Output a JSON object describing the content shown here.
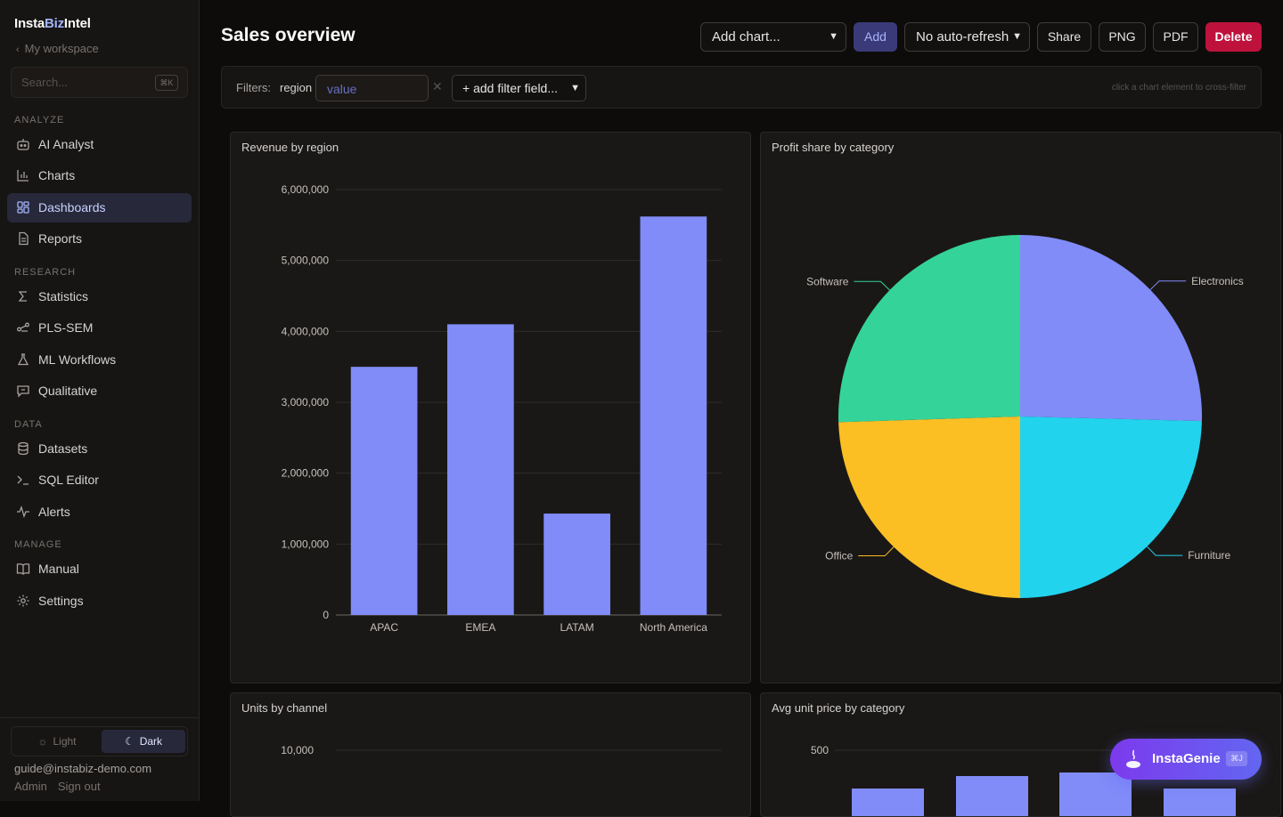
{
  "app": {
    "brand_prefix": "Insta",
    "brand_accent": "Biz",
    "brand_suffix": "Intel",
    "workspace_label": "My workspace",
    "search_placeholder": "Search...",
    "search_shortcut": "⌘K"
  },
  "sidebar": {
    "sections": {
      "analyze": "ANALYZE",
      "research": "RESEARCH",
      "data": "DATA",
      "manage": "MANAGE"
    },
    "items": [
      {
        "label": "AI Analyst",
        "icon": "robot-icon"
      },
      {
        "label": "Charts",
        "icon": "bar-chart-icon"
      },
      {
        "label": "Dashboards",
        "icon": "dashboard-grid-icon",
        "active": true
      },
      {
        "label": "Reports",
        "icon": "document-icon"
      },
      {
        "label": "Statistics",
        "icon": "sigma-icon"
      },
      {
        "label": "PLS-SEM",
        "icon": "network-icon"
      },
      {
        "label": "ML Workflows",
        "icon": "flask-icon"
      },
      {
        "label": "Qualitative",
        "icon": "chat-icon"
      },
      {
        "label": "Datasets",
        "icon": "database-icon"
      },
      {
        "label": "SQL Editor",
        "icon": "terminal-icon"
      },
      {
        "label": "Alerts",
        "icon": "pulse-icon"
      },
      {
        "label": "Manual",
        "icon": "book-icon"
      },
      {
        "label": "Settings",
        "icon": "gear-icon"
      }
    ],
    "theme": {
      "light": "Light",
      "dark": "Dark",
      "selected": "Dark"
    },
    "user_email": "guide@instabiz-demo.com",
    "user_role": "Admin",
    "sign_out": "Sign out"
  },
  "toolbar": {
    "page_title": "Sales overview",
    "add_chart_select": "Add chart...",
    "add_button": "Add",
    "refresh_select": "No auto-refresh",
    "share_button": "Share",
    "png_button": "PNG",
    "pdf_button": "PDF",
    "delete_button": "Delete"
  },
  "filters": {
    "label": "Filters:",
    "field": "region",
    "value_placeholder": "value",
    "add_field": "+ add filter field...",
    "hint": "click a chart element to cross-filter"
  },
  "colors": {
    "accent": "#818cf8",
    "delete": "#be123c",
    "pie": [
      "#818cf8",
      "#22d3ee",
      "#fbbf24",
      "#34d399"
    ]
  },
  "cards": {
    "revenue": "Revenue by region",
    "profit": "Profit share by category",
    "units": "Units by channel",
    "price": "Avg unit price by category"
  },
  "chart_data": [
    {
      "type": "bar",
      "title": "Revenue by region",
      "categories": [
        "APAC",
        "EMEA",
        "LATAM",
        "North America"
      ],
      "values": [
        3500000,
        4100000,
        1430000,
        5620000
      ],
      "ylim": [
        0,
        6000000
      ],
      "yticks": [
        "0",
        "1,000,000",
        "2,000,000",
        "3,000,000",
        "4,000,000",
        "5,000,000",
        "6,000,000"
      ],
      "grid": true
    },
    {
      "type": "pie",
      "title": "Profit share by category",
      "labels": [
        "Electronics",
        "Furniture",
        "Office",
        "Software"
      ],
      "values": [
        25.4,
        24.6,
        24.5,
        25.5
      ]
    },
    {
      "type": "bar",
      "title": "Units by channel",
      "yticks": [
        "10,000"
      ]
    },
    {
      "type": "bar",
      "title": "Avg unit price by category",
      "yticks": [
        "500"
      ]
    }
  ],
  "genie": {
    "label": "InstaGenie",
    "shortcut": "⌘J"
  }
}
